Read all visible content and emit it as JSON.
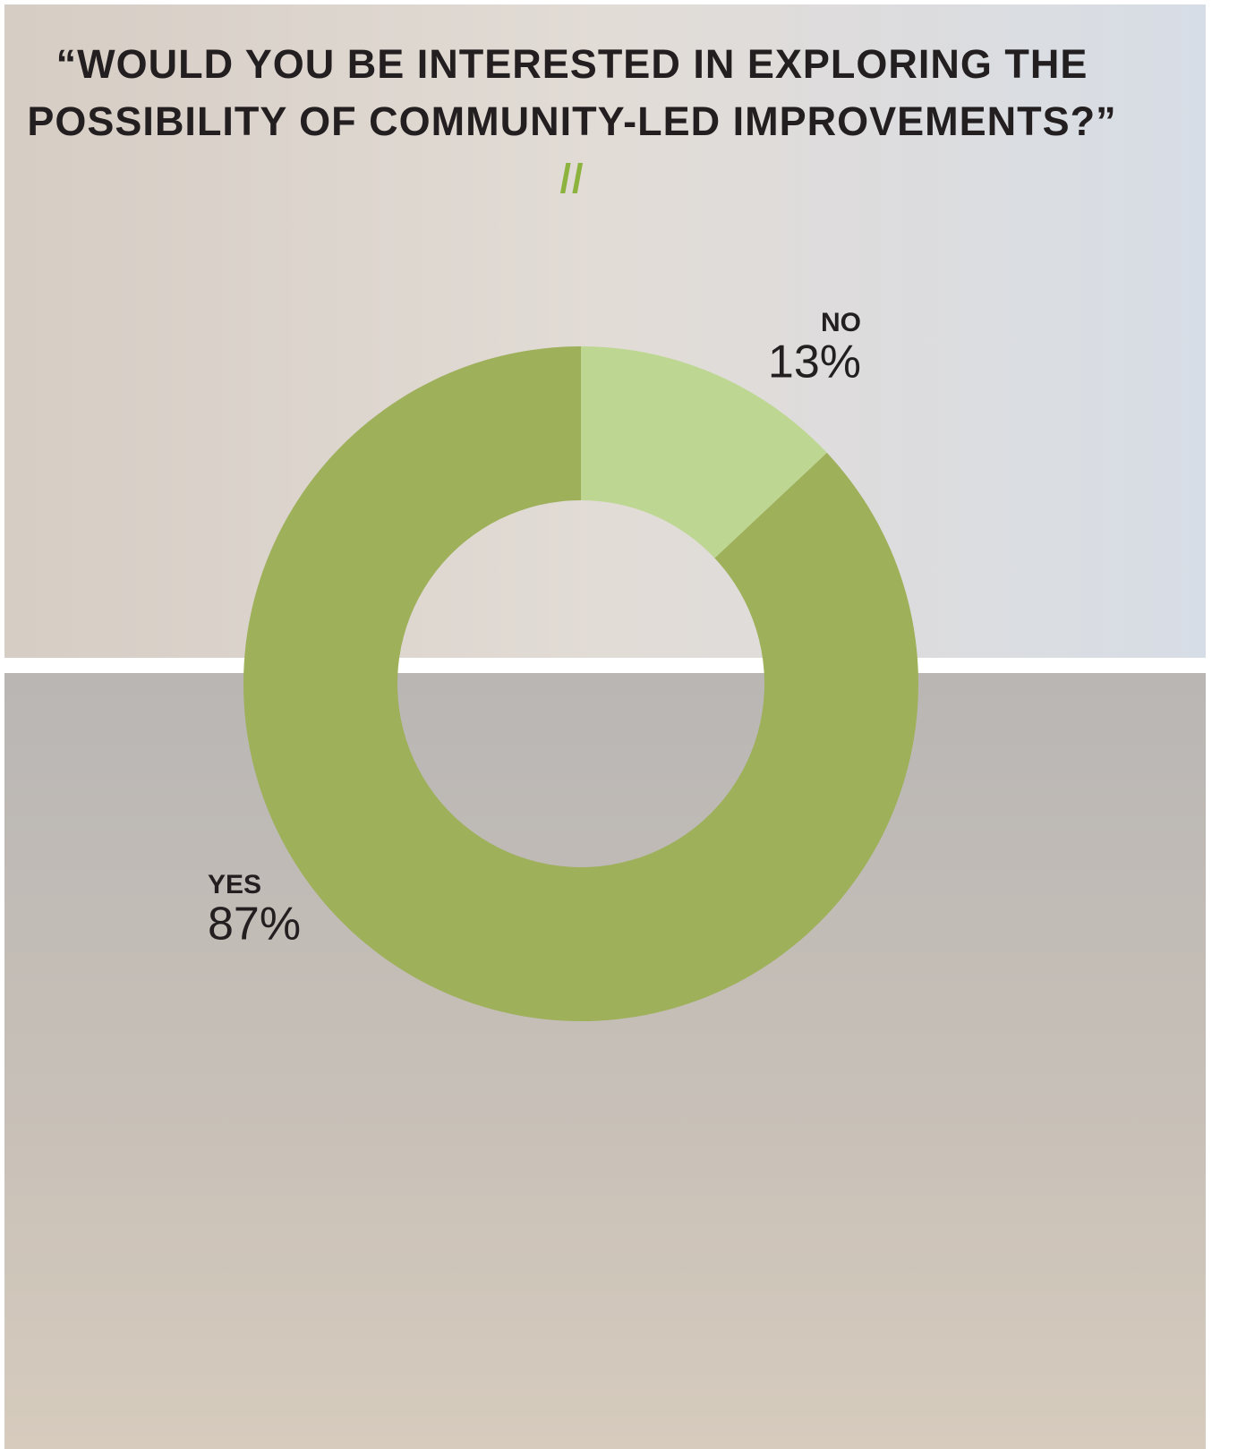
{
  "chart_data": {
    "type": "donut",
    "title": "“WOULD YOU BE INTERESTED IN EXPLORING THE POSSIBILITY OF COMMUNITY-LED IMPROVEMENTS?”",
    "title_mark": "//",
    "categories": [
      "NO",
      "YES"
    ],
    "values": [
      13,
      87
    ],
    "value_labels": [
      "13%",
      "87%"
    ],
    "colors": [
      "#bdd792",
      "#9eb05a"
    ]
  }
}
